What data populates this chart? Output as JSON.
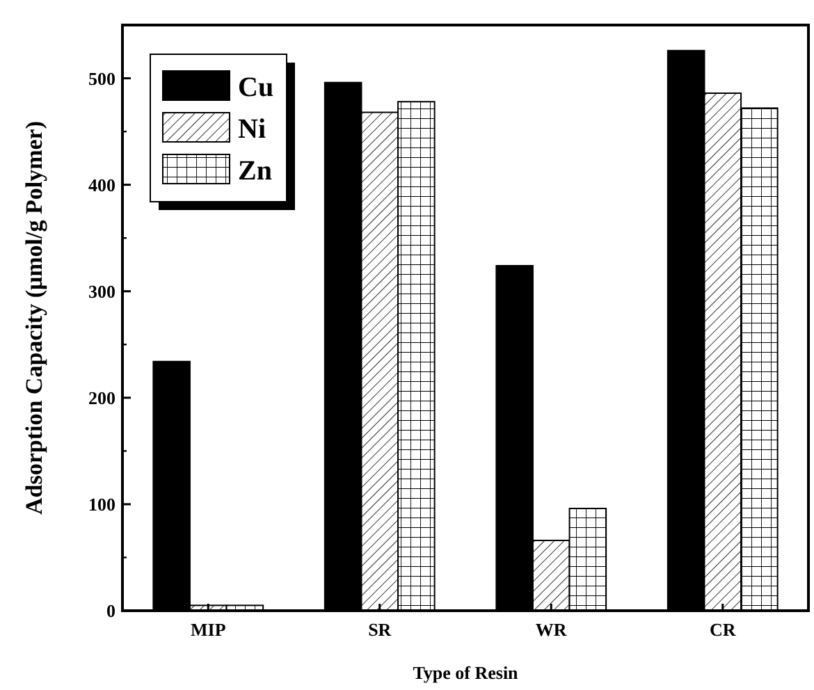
{
  "chart_data": {
    "type": "bar",
    "xlabel": "Type of Resin",
    "ylabel": "Adsorption Capacity (μmol/g Polymer)",
    "categories": [
      "MIP",
      "SR",
      "WR",
      "CR"
    ],
    "series": [
      {
        "name": "Cu",
        "color": "#000000",
        "values": [
          234,
          496,
          324,
          526
        ]
      },
      {
        "name": "Ni",
        "color": "#000000",
        "values": [
          5,
          468,
          66,
          486
        ]
      },
      {
        "name": "Zn",
        "color": "#000000",
        "values": [
          5,
          478,
          96,
          472
        ]
      }
    ],
    "ylim": [
      0,
      550
    ],
    "yticks": [
      0,
      100,
      200,
      300,
      400,
      500
    ],
    "grid": false,
    "legend": "top left"
  }
}
